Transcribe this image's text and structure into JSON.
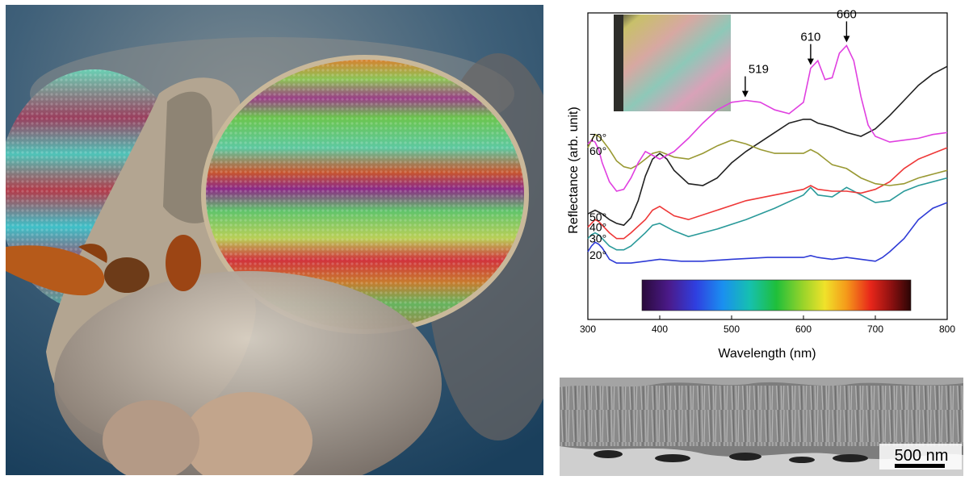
{
  "chart_data": {
    "type": "line",
    "xlabel": "Wavelength (nm)",
    "ylabel": "Reflectance (arb. unit)",
    "xlim": [
      300,
      800
    ],
    "xticks": [
      300,
      400,
      500,
      600,
      700,
      800
    ],
    "y_ticks_shown": false,
    "legend": "none",
    "series": [
      {
        "name": "20°",
        "color": "#2e3bd6",
        "x": [
          300,
          305,
          310,
          315,
          320,
          325,
          330,
          340,
          350,
          360,
          380,
          400,
          430,
          460,
          500,
          550,
          600,
          610,
          620,
          640,
          660,
          680,
          700,
          710,
          720,
          740,
          760,
          780,
          800
        ],
        "y": [
          0.23,
          0.26,
          0.28,
          0.27,
          0.25,
          0.22,
          0.19,
          0.17,
          0.17,
          0.17,
          0.18,
          0.19,
          0.18,
          0.18,
          0.19,
          0.2,
          0.2,
          0.21,
          0.2,
          0.19,
          0.2,
          0.19,
          0.18,
          0.2,
          0.23,
          0.3,
          0.4,
          0.46,
          0.49
        ]
      },
      {
        "name": "30°",
        "color": "#2a9a9a",
        "x": [
          300,
          305,
          310,
          315,
          320,
          330,
          340,
          350,
          360,
          380,
          390,
          400,
          420,
          440,
          480,
          520,
          560,
          600,
          610,
          620,
          640,
          660,
          680,
          700,
          720,
          740,
          760,
          780,
          800
        ],
        "y": [
          0.3,
          0.32,
          0.33,
          0.32,
          0.3,
          0.26,
          0.24,
          0.24,
          0.26,
          0.33,
          0.37,
          0.38,
          0.34,
          0.31,
          0.35,
          0.4,
          0.46,
          0.53,
          0.57,
          0.53,
          0.52,
          0.57,
          0.53,
          0.49,
          0.5,
          0.55,
          0.58,
          0.6,
          0.62
        ]
      },
      {
        "name": "40°",
        "color": "#ee3838",
        "x": [
          300,
          305,
          310,
          315,
          320,
          330,
          340,
          350,
          360,
          380,
          390,
          400,
          420,
          440,
          480,
          520,
          560,
          600,
          610,
          620,
          640,
          660,
          680,
          700,
          720,
          740,
          760,
          780,
          800
        ],
        "y": [
          0.36,
          0.38,
          0.4,
          0.39,
          0.37,
          0.33,
          0.3,
          0.3,
          0.33,
          0.4,
          0.45,
          0.47,
          0.42,
          0.4,
          0.45,
          0.5,
          0.53,
          0.56,
          0.58,
          0.56,
          0.55,
          0.55,
          0.54,
          0.56,
          0.6,
          0.67,
          0.72,
          0.75,
          0.78
        ]
      },
      {
        "name": "50°",
        "color": "#222222",
        "x": [
          300,
          310,
          320,
          330,
          340,
          350,
          360,
          370,
          380,
          390,
          400,
          410,
          420,
          440,
          460,
          480,
          500,
          520,
          540,
          560,
          580,
          600,
          610,
          620,
          640,
          660,
          680,
          700,
          720,
          740,
          760,
          780,
          800
        ],
        "y": [
          0.43,
          0.45,
          0.43,
          0.4,
          0.38,
          0.37,
          0.41,
          0.5,
          0.63,
          0.72,
          0.75,
          0.72,
          0.66,
          0.59,
          0.58,
          0.62,
          0.7,
          0.76,
          0.81,
          0.86,
          0.91,
          0.93,
          0.93,
          0.91,
          0.89,
          0.86,
          0.84,
          0.88,
          0.95,
          1.03,
          1.11,
          1.17,
          1.21
        ]
      },
      {
        "name": "60°",
        "color": "#999933",
        "x": [
          300,
          305,
          310,
          315,
          320,
          330,
          340,
          350,
          360,
          370,
          380,
          390,
          400,
          420,
          440,
          460,
          480,
          500,
          520,
          540,
          560,
          580,
          600,
          610,
          620,
          640,
          660,
          680,
          700,
          720,
          740,
          760,
          780,
          800
        ],
        "y": [
          0.78,
          0.82,
          0.85,
          0.84,
          0.82,
          0.77,
          0.71,
          0.68,
          0.67,
          0.69,
          0.72,
          0.75,
          0.76,
          0.73,
          0.72,
          0.75,
          0.79,
          0.82,
          0.8,
          0.77,
          0.75,
          0.75,
          0.75,
          0.77,
          0.75,
          0.69,
          0.67,
          0.62,
          0.59,
          0.58,
          0.59,
          0.62,
          0.64,
          0.66
        ]
      },
      {
        "name": "70°",
        "color": "#e040e0",
        "x": [
          300,
          305,
          310,
          315,
          320,
          330,
          340,
          350,
          360,
          370,
          380,
          390,
          400,
          420,
          440,
          460,
          480,
          500,
          520,
          540,
          560,
          580,
          600,
          610,
          620,
          630,
          640,
          650,
          660,
          670,
          680,
          690,
          700,
          720,
          740,
          760,
          780,
          800
        ],
        "y": [
          0.8,
          0.82,
          0.81,
          0.77,
          0.7,
          0.6,
          0.55,
          0.56,
          0.62,
          0.7,
          0.76,
          0.74,
          0.72,
          0.76,
          0.83,
          0.91,
          0.98,
          1.02,
          1.03,
          1.02,
          0.98,
          0.96,
          1.02,
          1.2,
          1.24,
          1.14,
          1.15,
          1.28,
          1.32,
          1.24,
          1.05,
          0.9,
          0.84,
          0.81,
          0.82,
          0.83,
          0.85,
          0.86
        ]
      }
    ],
    "angle_labels": [
      "70°",
      "60°",
      "50°",
      "40°",
      "30°",
      "20°"
    ],
    "annotations": [
      {
        "text": "519",
        "x": 519
      },
      {
        "text": "610",
        "x": 610
      },
      {
        "text": "660",
        "x": 660
      }
    ],
    "colorbar": {
      "range": [
        380,
        750
      ]
    }
  },
  "scale_bar": {
    "label": "500 nm"
  }
}
